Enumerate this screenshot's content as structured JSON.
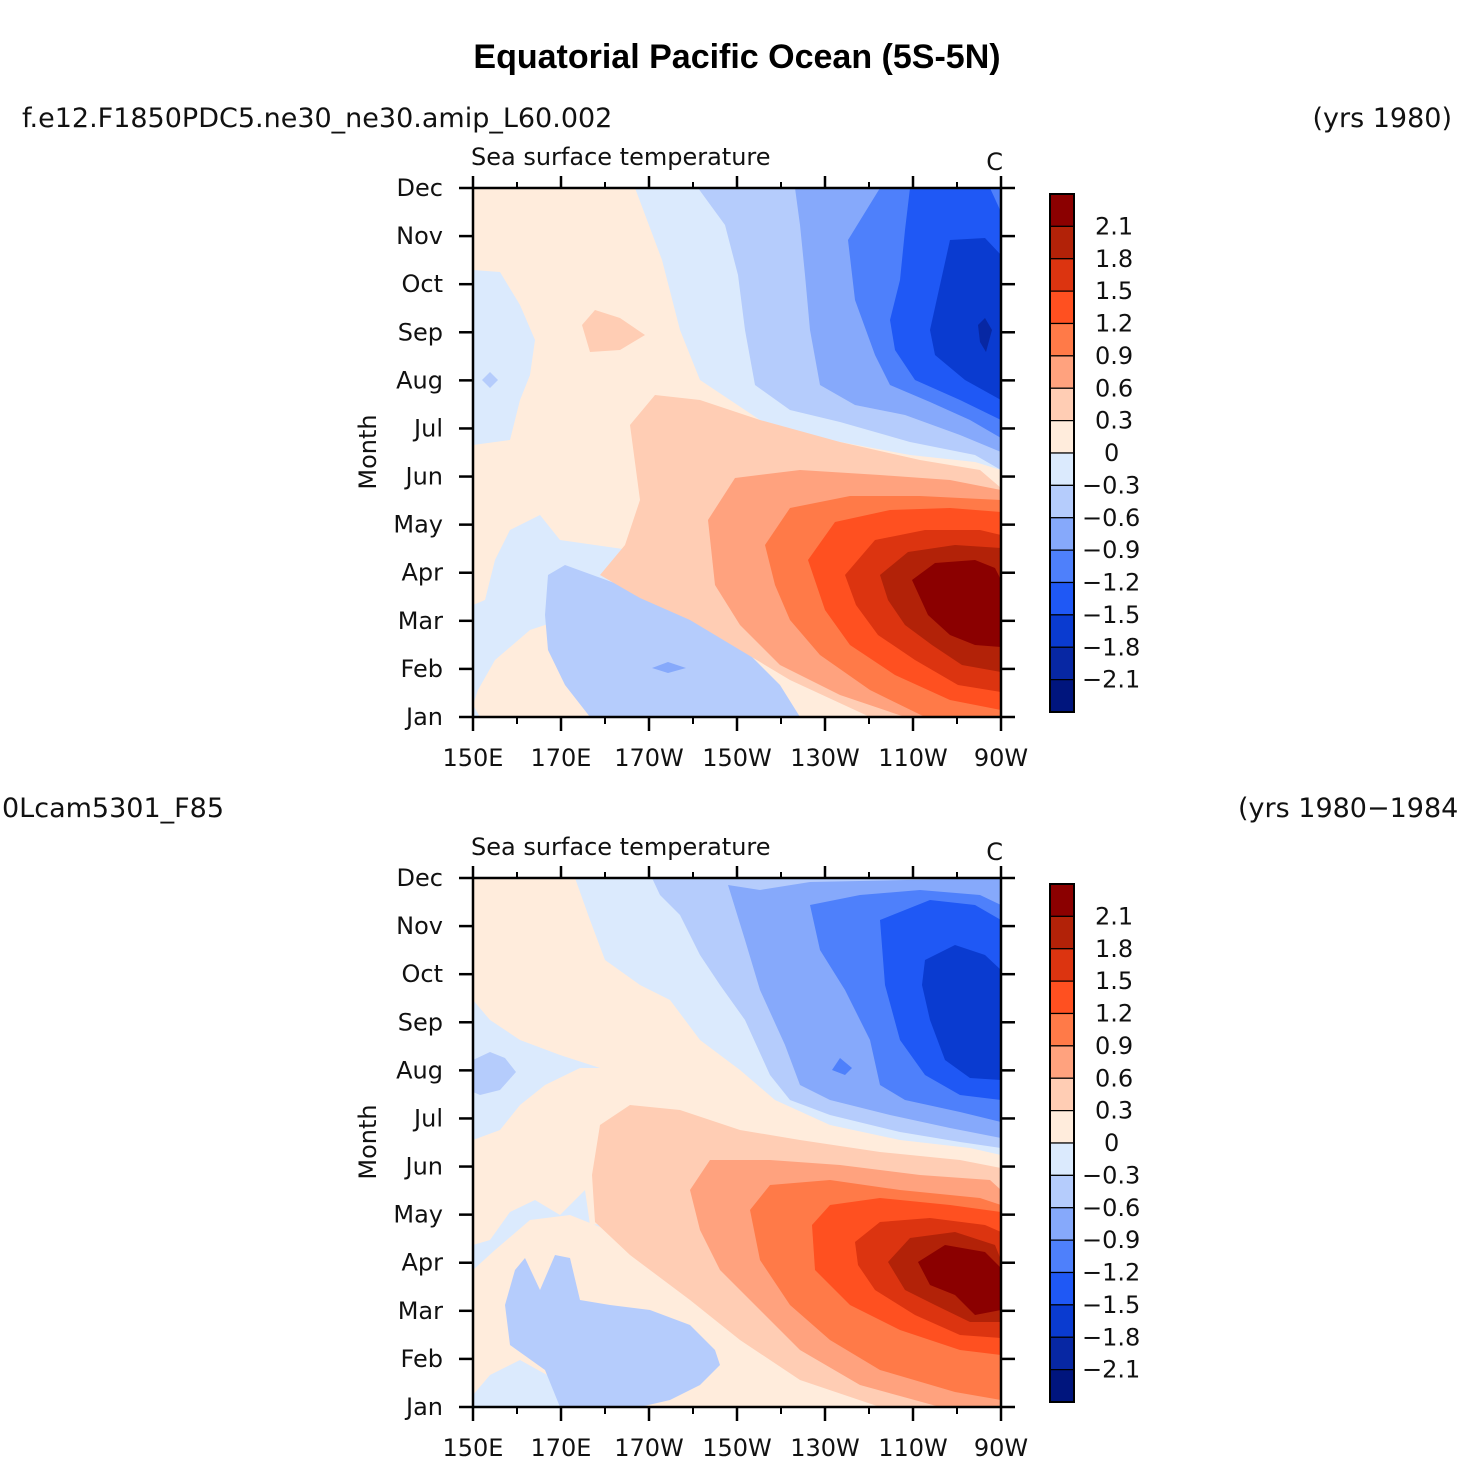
{
  "figure": {
    "title": "Equatorial Pacific Ocean (5S-5N)"
  },
  "chart_data": [
    {
      "type": "heatmap",
      "case_label": "f.e12.F1850PDC5.ne30_ne30.amip_L60.002",
      "years_label": "(yrs 1980)",
      "title": "Sea surface temperature",
      "units": "C",
      "xlabel": "",
      "ylabel": "Month",
      "x_ticks": [
        "150E",
        "170E",
        "170W",
        "150W",
        "130W",
        "110W",
        "90W"
      ],
      "y_ticks": [
        "Jan",
        "Feb",
        "Mar",
        "Apr",
        "May",
        "Jun",
        "Jul",
        "Aug",
        "Sep",
        "Oct",
        "Nov",
        "Dec"
      ],
      "colorbar_levels": [
        "2.1",
        "1.8",
        "1.5",
        "1.2",
        "0.9",
        "0.6",
        "0.3",
        "0",
        "−0.3",
        "−0.6",
        "−0.9",
        "−1.2",
        "−1.5",
        "−1.8",
        "−2.1"
      ],
      "grid": false,
      "legend_position": "right"
    },
    {
      "type": "heatmap",
      "case_label": "0Lcam5301_F85",
      "years_label": "(yrs 1980−1984",
      "title": "Sea surface temperature",
      "units": "C",
      "xlabel": "",
      "ylabel": "Month",
      "x_ticks": [
        "150E",
        "170E",
        "170W",
        "150W",
        "130W",
        "110W",
        "90W"
      ],
      "y_ticks": [
        "Jan",
        "Feb",
        "Mar",
        "Apr",
        "May",
        "Jun",
        "Jul",
        "Aug",
        "Sep",
        "Oct",
        "Nov",
        "Dec"
      ],
      "colorbar_levels": [
        "2.1",
        "1.8",
        "1.5",
        "1.2",
        "0.9",
        "0.6",
        "0.3",
        "0",
        "−0.3",
        "−0.6",
        "−0.9",
        "−1.2",
        "−1.5",
        "−1.8",
        "−2.1"
      ],
      "grid": false,
      "legend_position": "right"
    }
  ],
  "palette": [
    "#8b0000",
    "#b22208",
    "#dc3410",
    "#ff5020",
    "#ff7a48",
    "#ffa27e",
    "#ffcdb4",
    "#ffecdc",
    "#dbeafd",
    "#b5ccfc",
    "#86a9fb",
    "#4e80fb",
    "#1f58f5",
    "#0a3bd0",
    "#0727a3",
    "#00157d"
  ]
}
